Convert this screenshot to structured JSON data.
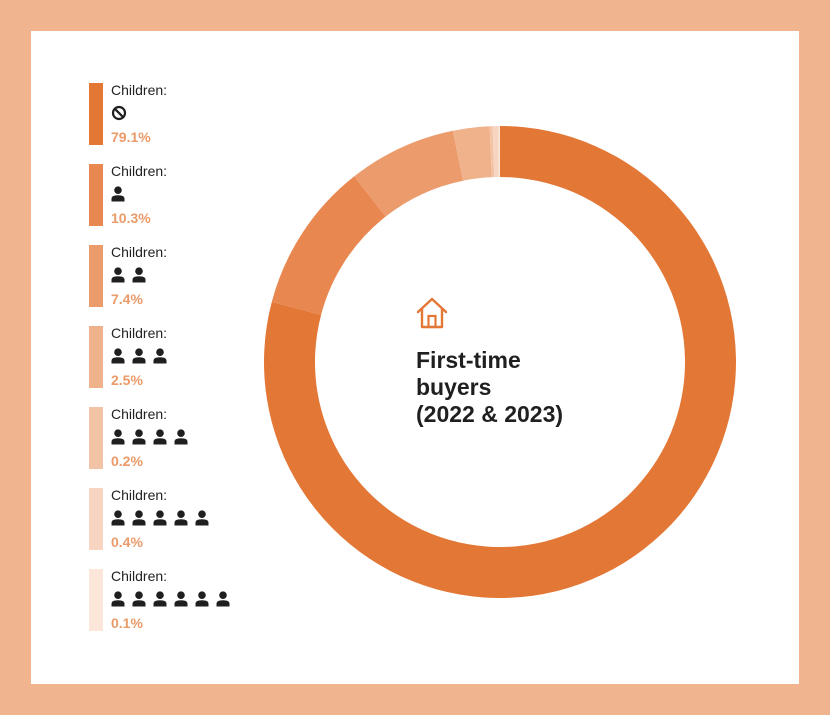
{
  "chart_data": {
    "type": "pie",
    "title": "First-time buyers (2022 & 2023)",
    "categories": [
      {
        "label": "Children:",
        "icon": "no-children-icon",
        "person_count": 0,
        "value": 79.1,
        "value_label": "79.1%",
        "color": "#e37736"
      },
      {
        "label": "Children:",
        "icon": "person-icon",
        "person_count": 1,
        "value": 10.3,
        "value_label": "10.3%",
        "color": "#e8874f"
      },
      {
        "label": "Children:",
        "icon": "person-icon",
        "person_count": 2,
        "value": 7.4,
        "value_label": "7.4%",
        "color": "#ec9c6c"
      },
      {
        "label": "Children:",
        "icon": "person-icon",
        "person_count": 3,
        "value": 2.5,
        "value_label": "2.5%",
        "color": "#f0b28b"
      },
      {
        "label": "Children:",
        "icon": "person-icon",
        "person_count": 4,
        "value": 0.2,
        "value_label": "0.2%",
        "color": "#f3c3a5"
      },
      {
        "label": "Children:",
        "icon": "person-icon",
        "person_count": 5,
        "value": 0.4,
        "value_label": "0.4%",
        "color": "#f7d5c0"
      },
      {
        "label": "Children:",
        "icon": "person-icon",
        "person_count": 6,
        "value": 0.1,
        "value_label": "0.1%",
        "color": "#fbe6d9"
      }
    ],
    "center_icon": "house-icon",
    "title_lines": [
      "First-time",
      "buyers",
      "(2022 & 2023)"
    ],
    "legend": "left"
  },
  "colors": {
    "background": "#f0b48e",
    "card": "#ffffff",
    "value_text": "#eb9a69",
    "accent": "#e37736"
  }
}
